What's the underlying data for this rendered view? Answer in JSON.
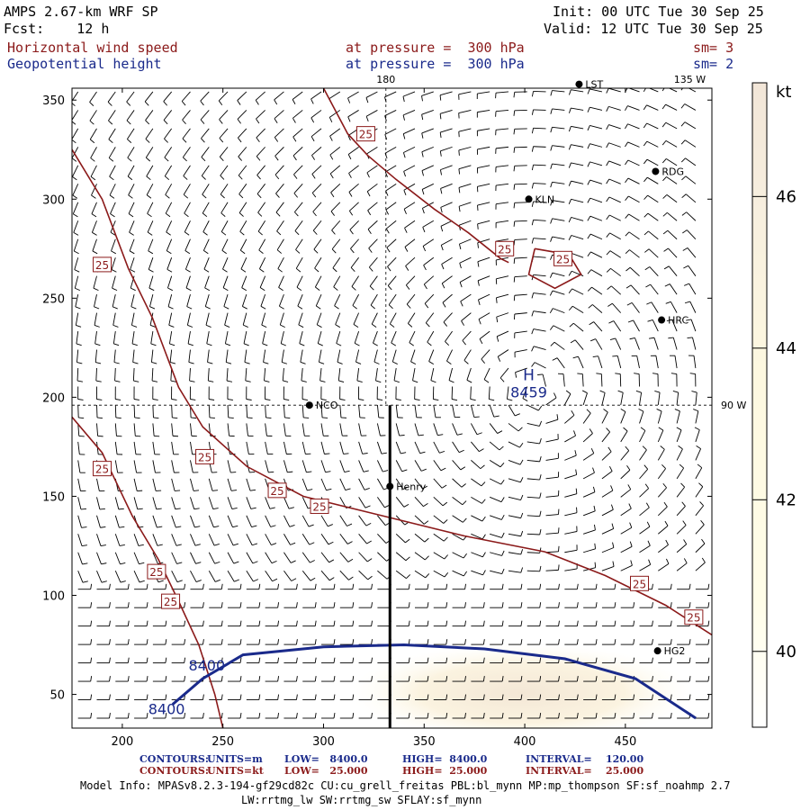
{
  "header": {
    "model": "AMPS 2.67-km WRF SP",
    "fcst": "Fcst:    12 h",
    "init": "Init: 00 UTC Tue 30 Sep 25",
    "valid": "Valid: 12 UTC Tue 30 Sep 25",
    "field1_name": "Horizontal wind speed",
    "field1_level": "at pressure =  300 hPa",
    "field1_sm": "sm= 3",
    "field2_name": "Geopotential height",
    "field2_level": "at pressure =  300 hPa",
    "field2_sm": "sm= 2"
  },
  "colors": {
    "wind_contour": "#8b1a1a",
    "height_contour": "#1a2a8b",
    "shade_low": "#fffbe6",
    "shade_high": "#f3e7d6"
  },
  "chart_data": {
    "type": "contour-map",
    "xlim": [
      175,
      493
    ],
    "ylim": [
      33,
      356
    ],
    "x_ticks": [
      200,
      250,
      300,
      350,
      400,
      450
    ],
    "y_ticks": [
      50,
      100,
      150,
      200,
      250,
      300,
      350
    ],
    "meridian_labels": [
      {
        "text": "180",
        "x": 331,
        "edge": "top"
      },
      {
        "text": "135 W",
        "x": 482,
        "edge": "top"
      },
      {
        "text": "90 W",
        "y": 196,
        "edge": "right"
      }
    ],
    "stations": [
      {
        "name": "NCO",
        "x": 293,
        "y": 196
      },
      {
        "name": "Henry",
        "x": 333,
        "y": 155
      },
      {
        "name": "KLN",
        "x": 402,
        "y": 300
      },
      {
        "name": "RDG",
        "x": 465,
        "y": 314
      },
      {
        "name": "HRC",
        "x": 468,
        "y": 239
      },
      {
        "name": "HG2",
        "x": 466,
        "y": 72
      },
      {
        "name": "LST",
        "x": 427,
        "y": 358
      }
    ],
    "high_center": {
      "label": "H",
      "value": "8459",
      "x": 402,
      "y": 204
    },
    "height_contour": {
      "value": 8400,
      "label": "8400",
      "points": [
        [
          225,
          45
        ],
        [
          240,
          58
        ],
        [
          260,
          70
        ],
        [
          300,
          74
        ],
        [
          340,
          75
        ],
        [
          380,
          73
        ],
        [
          420,
          68
        ],
        [
          455,
          58
        ],
        [
          485,
          38
        ]
      ]
    },
    "height_labels": [
      {
        "text": "8400",
        "x": 242,
        "y": 62
      },
      {
        "text": "8400",
        "x": 222,
        "y": 40
      }
    ],
    "wind_contour_labels": [
      {
        "text": "25",
        "x": 321,
        "y": 333
      },
      {
        "text": "25",
        "x": 390,
        "y": 275
      },
      {
        "text": "25",
        "x": 419,
        "y": 270
      },
      {
        "text": "25",
        "x": 190,
        "y": 267
      },
      {
        "text": "25",
        "x": 190,
        "y": 164
      },
      {
        "text": "25",
        "x": 241,
        "y": 170
      },
      {
        "text": "25",
        "x": 277,
        "y": 153
      },
      {
        "text": "25",
        "x": 298,
        "y": 145
      },
      {
        "text": "25",
        "x": 217,
        "y": 112
      },
      {
        "text": "25",
        "x": 224,
        "y": 97
      },
      {
        "text": "25",
        "x": 457,
        "y": 106
      },
      {
        "text": "25",
        "x": 484,
        "y": 89
      }
    ],
    "colorbar": {
      "unit": "kt",
      "ticks": [
        40,
        42,
        44,
        46
      ],
      "range": [
        39,
        47.5
      ]
    },
    "contour_legend": [
      {
        "label": "CONTOURS:",
        "units": "UNITS=m",
        "low": "LOW=   8400.0",
        "high": "HIGH=  8400.0",
        "interval": "INTERVAL=    120.00"
      },
      {
        "label": "CONTOURS:",
        "units": "UNITS=kt",
        "low": "LOW=   25.000",
        "high": "HIGH=  25.000",
        "interval": "INTERVAL=    25.000"
      }
    ]
  },
  "footer": {
    "model_info": "Model Info: MPASv8.2.3-194-gf29cd82c CU:cu_grell_freitas PBL:bl_mynn MP:mp_thompson SF:sf_noahmp 2.7",
    "model_info2": "LW:rrtmg_lw SW:rrtmg_sw SFLAY:sf_mynn"
  }
}
